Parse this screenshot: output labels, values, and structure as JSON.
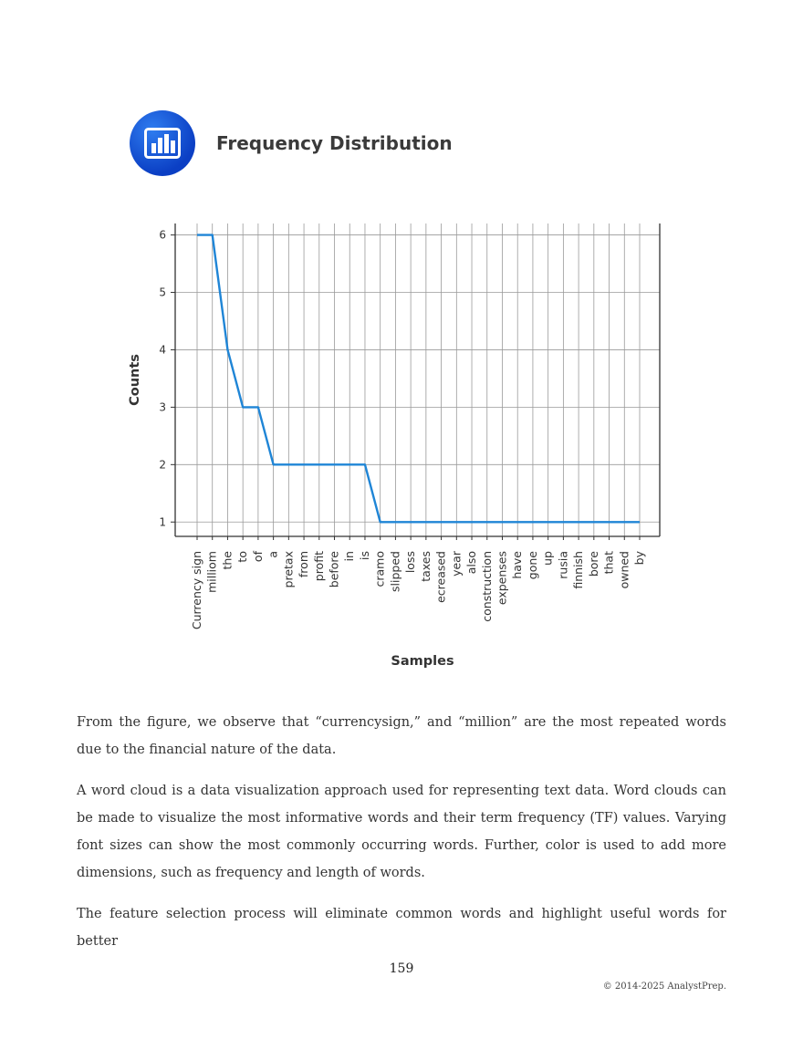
{
  "figure": {
    "title": "Frequency Distribution",
    "icon": "bar-chart-icon",
    "accent_color": "#1a5fd8"
  },
  "chart_data": {
    "type": "line",
    "title": "Frequency Distribution",
    "xlabel": "Samples",
    "ylabel": "Counts",
    "categories": [
      "Currency sign",
      "milliom",
      "the",
      "to",
      "of",
      "a",
      "pretax",
      "from",
      "profit",
      "before",
      "in",
      "is",
      "cramo",
      "slipped",
      "loss",
      "taxes",
      "ecreased",
      "year",
      "also",
      "construction",
      "expenses",
      "have",
      "gone",
      "up",
      "rusia",
      "finnish",
      "bore",
      "that",
      "owned",
      "by"
    ],
    "values": [
      6,
      6,
      4,
      3,
      3,
      2,
      2,
      2,
      2,
      2,
      2,
      2,
      1,
      1,
      1,
      1,
      1,
      1,
      1,
      1,
      1,
      1,
      1,
      1,
      1,
      1,
      1,
      1,
      1,
      1
    ],
    "yticks": [
      1,
      2,
      3,
      4,
      5,
      6
    ],
    "ylim": [
      0.75,
      6.2
    ],
    "grid": true,
    "line_color": "#1f85d6"
  },
  "body": {
    "paragraph1": "From the figure, we observe that “currencysign,” and “million” are the most repeated words due to the financial nature of the data.",
    "paragraph2": "A word cloud is a data visualization approach used for representing text data. Word clouds can be made to visualize the most informative words and their term frequency (TF) values. Varying font sizes can show the most commonly occurring words. Further, color is used to add more dimensions, such as frequency and length of words.",
    "paragraph3": "The feature selection process will eliminate common words and highlight useful words for better"
  },
  "footer": {
    "page_number": "159",
    "copyright": "© 2014-2025 AnalystPrep."
  }
}
